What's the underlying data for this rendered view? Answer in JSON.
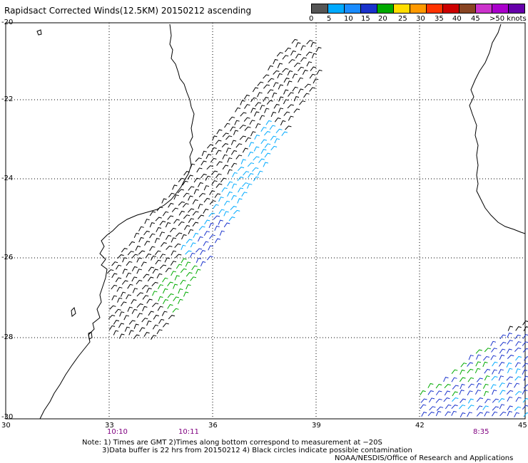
{
  "title": "Rapidsact Corrected Winds(12.5KM) 20150212 ascending",
  "legend": {
    "colors": [
      "#555555",
      "#00aaff",
      "#1a8cff",
      "#1a33cc",
      "#00aa00",
      "#ffdd00",
      "#ff9900",
      "#ff3300",
      "#cc0000",
      "#884422",
      "#cc33cc",
      "#aa00cc",
      "#6600aa"
    ],
    "labels": [
      "0",
      "5",
      "10",
      "15",
      "20",
      "25",
      "30",
      "35",
      "40",
      "45",
      ">50 knots"
    ]
  },
  "axes": {
    "lon_ticks": [
      "30",
      "33",
      "36",
      "39",
      "42",
      "45"
    ],
    "lat_ticks": [
      "-20",
      "-22",
      "-24",
      "-26",
      "-28",
      "-30"
    ]
  },
  "times": [
    "10:10",
    "10:11",
    "8:35"
  ],
  "notes": {
    "line1": "Note: 1) Times are GMT 2)Times along bottom correspond to measurement at −20S",
    "line2": "3)Data buffer is 22 hrs from 20150212 4) Black circles indicate possible contamination",
    "credit": "NOAA/NESDIS/Office of Research and Applications"
  }
}
